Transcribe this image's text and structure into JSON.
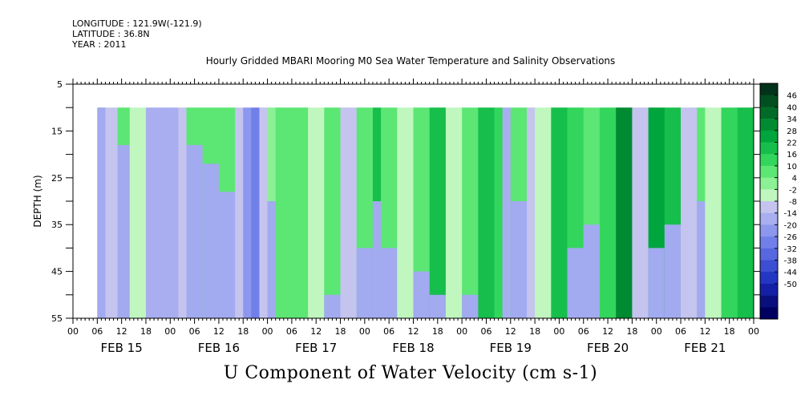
{
  "header": {
    "longitude": "LONGITUDE : 121.9W(-121.9)",
    "latitude": "LATITUDE : 36.8N",
    "year": "YEAR : 2011"
  },
  "chart_data": {
    "type": "heatmap",
    "title": "Hourly Gridded MBARI Mooring M0 Sea Water Temperature and Salinity Observations",
    "xlabel": "U Component of Water Velocity (cm s-1)",
    "ylabel": "DEPTH (m)",
    "y_ticks": [
      5,
      15,
      25,
      35,
      45,
      55
    ],
    "ylim": [
      55,
      5
    ],
    "data_depth_range": [
      10,
      55
    ],
    "x_hour_labels": [
      "00",
      "06",
      "12",
      "18",
      "00",
      "06",
      "12",
      "18",
      "00",
      "06",
      "12",
      "18",
      "00",
      "06",
      "12",
      "18",
      "00",
      "06",
      "12",
      "18",
      "00",
      "06",
      "12",
      "18",
      "00",
      "06",
      "12",
      "18",
      "00"
    ],
    "date_labels": [
      "FEB 15",
      "FEB 16",
      "FEB 17",
      "FEB 18",
      "FEB 19",
      "FEB 20",
      "FEB 21"
    ],
    "x_range_hours": [
      0,
      168
    ],
    "data_start_hour": 6,
    "colorbar": {
      "labels": [
        "46",
        "40",
        "34",
        "28",
        "22",
        "16",
        "10",
        "4",
        "-2",
        "-8",
        "-14",
        "-20",
        "-26",
        "-32",
        "-38",
        "-44",
        "-50"
      ],
      "bins": [
        "#003319",
        "#00501f",
        "#006b28",
        "#008a32",
        "#00a63d",
        "#16bf4b",
        "#33d65c",
        "#5ce674",
        "#8cf095",
        "#c0f7be",
        "#c4c4ef",
        "#a8aef0",
        "#8c97ee",
        "#717fe8",
        "#5767df",
        "#3c4ed2",
        "#2337c2",
        "#1421a6",
        "#0a0f7e",
        "#000060"
      ],
      "minus_color": "#a2aaf0",
      "plus_color": "#7aef83"
    },
    "velocity_columns": [
      {
        "start": 6,
        "end": 8,
        "u": 4,
        "eq_depth": 10
      },
      {
        "start": 8,
        "end": 11,
        "u": -8,
        "eq_depth": 55
      },
      {
        "start": 11,
        "end": 14,
        "u": 6,
        "eq_depth": 18
      },
      {
        "start": 14,
        "end": 18,
        "u": -6,
        "eq_depth": 55
      },
      {
        "start": 18,
        "end": 22,
        "u": -14,
        "eq_depth": 55
      },
      {
        "start": 22,
        "end": 26,
        "u": -18,
        "eq_depth": 55
      },
      {
        "start": 26,
        "end": 28,
        "u": -10,
        "eq_depth": 55
      },
      {
        "start": 28,
        "end": 32,
        "u": 6,
        "eq_depth": 18
      },
      {
        "start": 32,
        "end": 36,
        "u": 8,
        "eq_depth": 22
      },
      {
        "start": 36,
        "end": 40,
        "u": 6,
        "eq_depth": 28
      },
      {
        "start": 40,
        "end": 42,
        "u": -10,
        "eq_depth": 55
      },
      {
        "start": 42,
        "end": 44,
        "u": -20,
        "eq_depth": 55
      },
      {
        "start": 44,
        "end": 46,
        "u": -30,
        "eq_depth": 55
      },
      {
        "start": 46,
        "end": 48,
        "u": -10,
        "eq_depth": 55
      },
      {
        "start": 48,
        "end": 50,
        "u": 4,
        "eq_depth": 30
      },
      {
        "start": 50,
        "end": 54,
        "u": 8,
        "eq_depth": 55
      },
      {
        "start": 54,
        "end": 58,
        "u": 6,
        "eq_depth": 55
      },
      {
        "start": 58,
        "end": 62,
        "u": -6,
        "eq_depth": 55
      },
      {
        "start": 62,
        "end": 66,
        "u": 6,
        "eq_depth": 50
      },
      {
        "start": 66,
        "end": 70,
        "u": -10,
        "eq_depth": 55
      },
      {
        "start": 70,
        "end": 74,
        "u": 10,
        "eq_depth": 40
      },
      {
        "start": 74,
        "end": 76,
        "u": 22,
        "eq_depth": 30
      },
      {
        "start": 76,
        "end": 80,
        "u": 8,
        "eq_depth": 40
      },
      {
        "start": 80,
        "end": 84,
        "u": -6,
        "eq_depth": 55
      },
      {
        "start": 84,
        "end": 88,
        "u": 10,
        "eq_depth": 45
      },
      {
        "start": 88,
        "end": 92,
        "u": 18,
        "eq_depth": 50
      },
      {
        "start": 92,
        "end": 96,
        "u": -6,
        "eq_depth": 55
      },
      {
        "start": 96,
        "end": 100,
        "u": 10,
        "eq_depth": 50
      },
      {
        "start": 100,
        "end": 104,
        "u": 22,
        "eq_depth": 55
      },
      {
        "start": 104,
        "end": 106,
        "u": 14,
        "eq_depth": 55
      },
      {
        "start": 106,
        "end": 108,
        "u": -14,
        "eq_depth": 55
      },
      {
        "start": 108,
        "end": 112,
        "u": 10,
        "eq_depth": 30
      },
      {
        "start": 112,
        "end": 114,
        "u": -8,
        "eq_depth": 55
      },
      {
        "start": 114,
        "end": 118,
        "u": -6,
        "eq_depth": 55
      },
      {
        "start": 118,
        "end": 122,
        "u": 20,
        "eq_depth": 55
      },
      {
        "start": 122,
        "end": 126,
        "u": 14,
        "eq_depth": 40
      },
      {
        "start": 126,
        "end": 130,
        "u": 6,
        "eq_depth": 35
      },
      {
        "start": 130,
        "end": 134,
        "u": 16,
        "eq_depth": 55
      },
      {
        "start": 134,
        "end": 138,
        "u": 30,
        "eq_depth": 55
      },
      {
        "start": 138,
        "end": 142,
        "u": -8,
        "eq_depth": 55
      },
      {
        "start": 142,
        "end": 146,
        "u": 26,
        "eq_depth": 40
      },
      {
        "start": 146,
        "end": 150,
        "u": 18,
        "eq_depth": 35
      },
      {
        "start": 150,
        "end": 154,
        "u": -8,
        "eq_depth": 55
      },
      {
        "start": 154,
        "end": 156,
        "u": 10,
        "eq_depth": 30
      },
      {
        "start": 156,
        "end": 160,
        "u": -6,
        "eq_depth": 55
      },
      {
        "start": 160,
        "end": 164,
        "u": 14,
        "eq_depth": 55
      },
      {
        "start": 164,
        "end": 168,
        "u": 20,
        "eq_depth": 55
      }
    ]
  }
}
